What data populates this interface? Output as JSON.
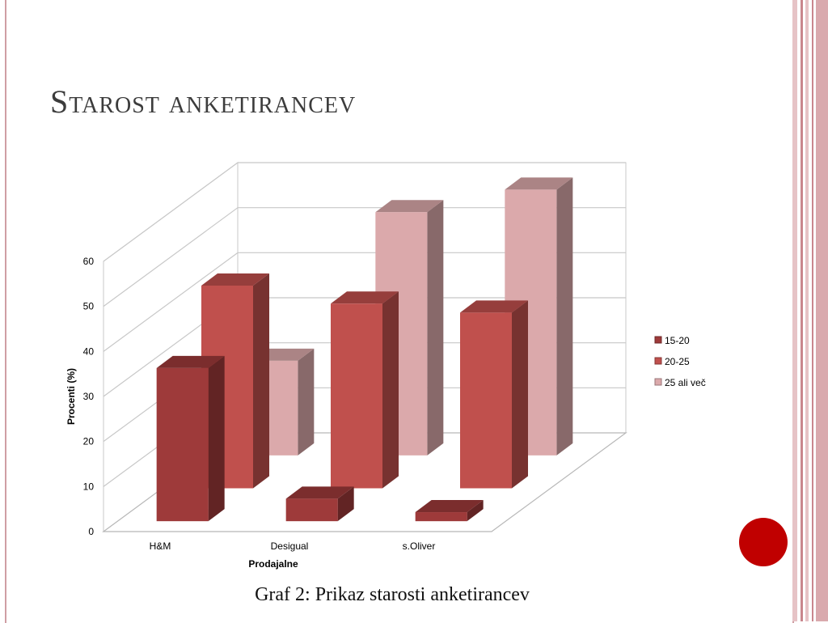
{
  "slide": {
    "title": "Starost anketirancev",
    "caption": "Graf 2: Prikaz starosti anketirancev"
  },
  "colors": {
    "frame": "#cf9ea4",
    "stripe_dark": "#c9868d",
    "stripe_light": "#e6c3c6",
    "accent_dot": "#c00000",
    "series": [
      "#9e3a3a",
      "#c0504d",
      "#dba9ab"
    ]
  },
  "chart_data": {
    "type": "bar",
    "style": "3d-clustered-column",
    "categories": [
      "H&M",
      "Desigual",
      "s.Oliver"
    ],
    "series": [
      {
        "name": "15-20",
        "values": [
          34,
          5,
          2
        ]
      },
      {
        "name": "20-25",
        "values": [
          45,
          41,
          39
        ]
      },
      {
        "name": "25 ali več",
        "values": [
          21,
          54,
          59
        ]
      }
    ],
    "xlabel": "Prodajalne",
    "ylabel": "Procenti (%)",
    "ylim": [
      0,
      60
    ],
    "yticks": [
      0,
      10,
      20,
      30,
      40,
      50,
      60
    ],
    "grid": true,
    "legend_position": "right"
  }
}
